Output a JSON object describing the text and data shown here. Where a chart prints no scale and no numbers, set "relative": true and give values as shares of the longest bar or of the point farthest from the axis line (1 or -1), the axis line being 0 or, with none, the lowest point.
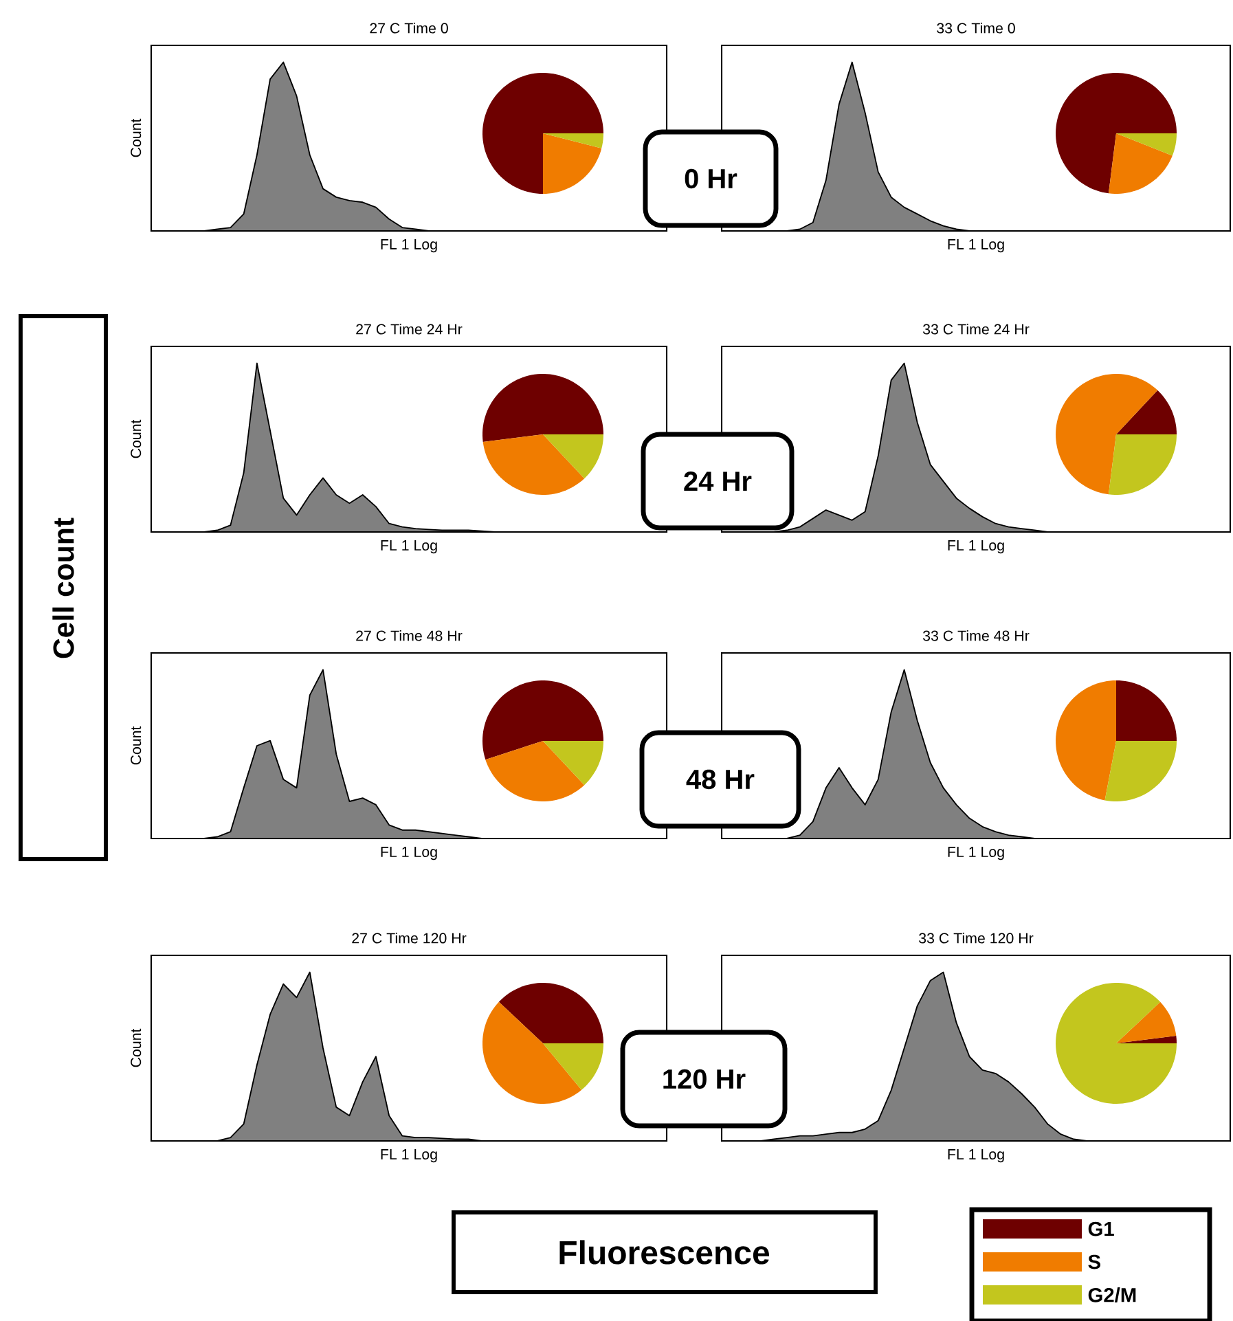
{
  "chart_data": [
    {
      "type": "area",
      "title": "27 C Time 0",
      "xlabel": "FL 1 Log",
      "ylabel": "Count",
      "relative": true,
      "color": "#808080",
      "annotations": [
        "0 Hr"
      ],
      "categories": [
        null,
        null,
        null,
        null,
        null,
        null,
        null,
        null,
        null,
        null,
        null,
        null,
        null,
        null,
        null,
        null,
        null,
        null,
        null,
        null,
        null,
        null,
        null,
        null,
        null,
        null,
        null,
        null,
        null,
        null,
        null,
        null,
        null,
        null,
        null,
        null,
        null,
        null,
        null,
        null
      ],
      "values": [
        0,
        0,
        0,
        0,
        0,
        0.01,
        0.02,
        0.1,
        0.45,
        0.9,
        1.0,
        0.8,
        0.45,
        0.25,
        0.2,
        0.18,
        0.17,
        0.14,
        0.07,
        0.02,
        0.01,
        0,
        0,
        0,
        0,
        0,
        0,
        0,
        0,
        0,
        0,
        0,
        0,
        0,
        0,
        0,
        0,
        0,
        0,
        0
      ]
    },
    {
      "type": "pie",
      "categories": [
        null,
        null,
        null
      ],
      "values": [
        75,
        21,
        4
      ],
      "colors": [
        "#6e0000",
        "#f07c00",
        "#c3c61e"
      ]
    },
    {
      "type": "area",
      "title": "33 C Time 0",
      "xlabel": "FL 1 Log",
      "relative": true,
      "color": "#808080",
      "categories": [
        null,
        null,
        null,
        null,
        null,
        null,
        null,
        null,
        null,
        null,
        null,
        null,
        null,
        null,
        null,
        null,
        null,
        null,
        null,
        null,
        null,
        null,
        null,
        null,
        null,
        null,
        null,
        null,
        null,
        null,
        null,
        null,
        null,
        null,
        null,
        null,
        null,
        null,
        null,
        null
      ],
      "values": [
        0,
        0,
        0,
        0,
        0,
        0,
        0.01,
        0.05,
        0.3,
        0.75,
        1.0,
        0.7,
        0.35,
        0.2,
        0.14,
        0.1,
        0.06,
        0.03,
        0.01,
        0,
        0,
        0,
        0,
        0,
        0,
        0,
        0,
        0,
        0,
        0,
        0,
        0,
        0,
        0,
        0,
        0,
        0,
        0,
        0,
        0
      ]
    },
    {
      "type": "pie",
      "categories": [
        null,
        null,
        null
      ],
      "values": [
        73,
        21,
        6
      ],
      "colors": [
        "#6e0000",
        "#f07c00",
        "#c3c61e"
      ]
    },
    {
      "type": "area",
      "title": "27 C Time 24 Hr",
      "xlabel": "FL 1 Log",
      "ylabel": "Count",
      "relative": true,
      "color": "#808080",
      "annotations": [
        "24 Hr"
      ],
      "categories": [
        null,
        null,
        null,
        null,
        null,
        null,
        null,
        null,
        null,
        null,
        null,
        null,
        null,
        null,
        null,
        null,
        null,
        null,
        null,
        null,
        null,
        null,
        null,
        null,
        null,
        null,
        null,
        null,
        null,
        null,
        null,
        null,
        null,
        null,
        null,
        null,
        null,
        null,
        null,
        null
      ],
      "values": [
        0,
        0,
        0,
        0,
        0,
        0.01,
        0.04,
        0.35,
        1.0,
        0.6,
        0.2,
        0.1,
        0.22,
        0.32,
        0.22,
        0.17,
        0.22,
        0.15,
        0.05,
        0.03,
        0.02,
        0.015,
        0.01,
        0.01,
        0.01,
        0.005,
        0,
        0,
        0,
        0,
        0,
        0,
        0,
        0,
        0,
        0,
        0,
        0,
        0,
        0
      ]
    },
    {
      "type": "pie",
      "categories": [
        null,
        null,
        null
      ],
      "values": [
        52,
        35,
        13
      ],
      "colors": [
        "#6e0000",
        "#f07c00",
        "#c3c61e"
      ]
    },
    {
      "type": "area",
      "title": "33 C Time 24 Hr",
      "xlabel": "FL 1 Log",
      "relative": true,
      "color": "#808080",
      "categories": [
        null,
        null,
        null,
        null,
        null,
        null,
        null,
        null,
        null,
        null,
        null,
        null,
        null,
        null,
        null,
        null,
        null,
        null,
        null,
        null,
        null,
        null,
        null,
        null,
        null,
        null,
        null,
        null,
        null,
        null,
        null,
        null,
        null,
        null,
        null,
        null,
        null,
        null,
        null,
        null
      ],
      "values": [
        0,
        0,
        0,
        0,
        0,
        0.01,
        0.03,
        0.08,
        0.13,
        0.1,
        0.07,
        0.12,
        0.45,
        0.9,
        1.0,
        0.65,
        0.4,
        0.3,
        0.2,
        0.14,
        0.09,
        0.05,
        0.03,
        0.02,
        0.01,
        0,
        0,
        0,
        0,
        0,
        0,
        0,
        0,
        0,
        0,
        0,
        0,
        0,
        0,
        0
      ]
    },
    {
      "type": "pie",
      "categories": [
        null,
        null,
        null
      ],
      "values": [
        13,
        60,
        27
      ],
      "colors": [
        "#6e0000",
        "#f07c00",
        "#c3c61e"
      ]
    },
    {
      "type": "area",
      "title": "27 C Time 48 Hr",
      "xlabel": "FL 1 Log",
      "ylabel": "Count",
      "relative": true,
      "color": "#808080",
      "annotations": [
        "48 Hr"
      ],
      "categories": [
        null,
        null,
        null,
        null,
        null,
        null,
        null,
        null,
        null,
        null,
        null,
        null,
        null,
        null,
        null,
        null,
        null,
        null,
        null,
        null,
        null,
        null,
        null,
        null,
        null,
        null,
        null,
        null,
        null,
        null,
        null,
        null,
        null,
        null,
        null,
        null,
        null,
        null,
        null,
        null
      ],
      "values": [
        0,
        0,
        0,
        0,
        0,
        0.01,
        0.04,
        0.3,
        0.55,
        0.58,
        0.35,
        0.3,
        0.85,
        1.0,
        0.5,
        0.22,
        0.24,
        0.2,
        0.08,
        0.05,
        0.05,
        0.04,
        0.03,
        0.02,
        0.01,
        0,
        0,
        0,
        0,
        0,
        0,
        0,
        0,
        0,
        0,
        0,
        0,
        0,
        0,
        0
      ]
    },
    {
      "type": "pie",
      "categories": [
        null,
        null,
        null
      ],
      "values": [
        55,
        32,
        13
      ],
      "colors": [
        "#6e0000",
        "#f07c00",
        "#c3c61e"
      ]
    },
    {
      "type": "area",
      "title": "33 C Time 48 Hr",
      "xlabel": "FL 1 Log",
      "relative": true,
      "color": "#808080",
      "categories": [
        null,
        null,
        null,
        null,
        null,
        null,
        null,
        null,
        null,
        null,
        null,
        null,
        null,
        null,
        null,
        null,
        null,
        null,
        null,
        null,
        null,
        null,
        null,
        null,
        null,
        null,
        null,
        null,
        null,
        null,
        null,
        null,
        null,
        null,
        null,
        null,
        null,
        null,
        null,
        null
      ],
      "values": [
        0,
        0,
        0,
        0,
        0,
        0,
        0.02,
        0.1,
        0.3,
        0.42,
        0.3,
        0.2,
        0.35,
        0.75,
        1.0,
        0.7,
        0.45,
        0.3,
        0.2,
        0.12,
        0.07,
        0.04,
        0.02,
        0.01,
        0,
        0,
        0,
        0,
        0,
        0,
        0,
        0,
        0,
        0,
        0,
        0,
        0,
        0,
        0,
        0
      ]
    },
    {
      "type": "pie",
      "categories": [
        null,
        null,
        null
      ],
      "values": [
        25,
        47,
        28
      ],
      "colors": [
        "#6e0000",
        "#f07c00",
        "#c3c61e"
      ]
    },
    {
      "type": "area",
      "title": "27 C Time 120 Hr",
      "xlabel": "FL 1 Log",
      "ylabel": "Count",
      "relative": true,
      "color": "#808080",
      "annotations": [
        "120 Hr"
      ],
      "categories": [
        null,
        null,
        null,
        null,
        null,
        null,
        null,
        null,
        null,
        null,
        null,
        null,
        null,
        null,
        null,
        null,
        null,
        null,
        null,
        null,
        null,
        null,
        null,
        null,
        null,
        null,
        null,
        null,
        null,
        null,
        null,
        null,
        null,
        null,
        null,
        null,
        null,
        null,
        null,
        null
      ],
      "values": [
        0,
        0,
        0,
        0,
        0,
        0,
        0.02,
        0.1,
        0.45,
        0.75,
        0.93,
        0.85,
        1.0,
        0.55,
        0.2,
        0.15,
        0.35,
        0.5,
        0.15,
        0.03,
        0.02,
        0.02,
        0.015,
        0.01,
        0.01,
        0,
        0,
        0,
        0,
        0,
        0,
        0,
        0,
        0,
        0,
        0,
        0,
        0,
        0,
        0
      ]
    },
    {
      "type": "pie",
      "categories": [
        null,
        null,
        null
      ],
      "values": [
        38,
        48,
        14
      ],
      "colors": [
        "#6e0000",
        "#f07c00",
        "#c3c61e"
      ]
    },
    {
      "type": "area",
      "title": "33 C Time 120 Hr",
      "xlabel": "FL 1 Log",
      "relative": true,
      "color": "#808080",
      "categories": [
        null,
        null,
        null,
        null,
        null,
        null,
        null,
        null,
        null,
        null,
        null,
        null,
        null,
        null,
        null,
        null,
        null,
        null,
        null,
        null,
        null,
        null,
        null,
        null,
        null,
        null,
        null,
        null,
        null,
        null,
        null,
        null,
        null,
        null,
        null,
        null,
        null,
        null,
        null,
        null
      ],
      "values": [
        0,
        0,
        0,
        0,
        0.01,
        0.02,
        0.03,
        0.03,
        0.04,
        0.05,
        0.05,
        0.07,
        0.12,
        0.3,
        0.55,
        0.8,
        0.95,
        1.0,
        0.7,
        0.5,
        0.42,
        0.4,
        0.35,
        0.28,
        0.2,
        0.1,
        0.04,
        0.01,
        0,
        0,
        0,
        0,
        0,
        0,
        0,
        0,
        0,
        0,
        0,
        0
      ]
    },
    {
      "type": "pie",
      "categories": [
        "G1",
        "S",
        "G2/M"
      ],
      "values": [
        2,
        10,
        88
      ],
      "colors": [
        "#6e0000",
        "#f07c00",
        "#c3c61e"
      ],
      "legend": "bottom"
    },
    {
      "type": "other",
      "annotations": [
        "Cell count",
        "Fluorescence"
      ]
    }
  ]
}
